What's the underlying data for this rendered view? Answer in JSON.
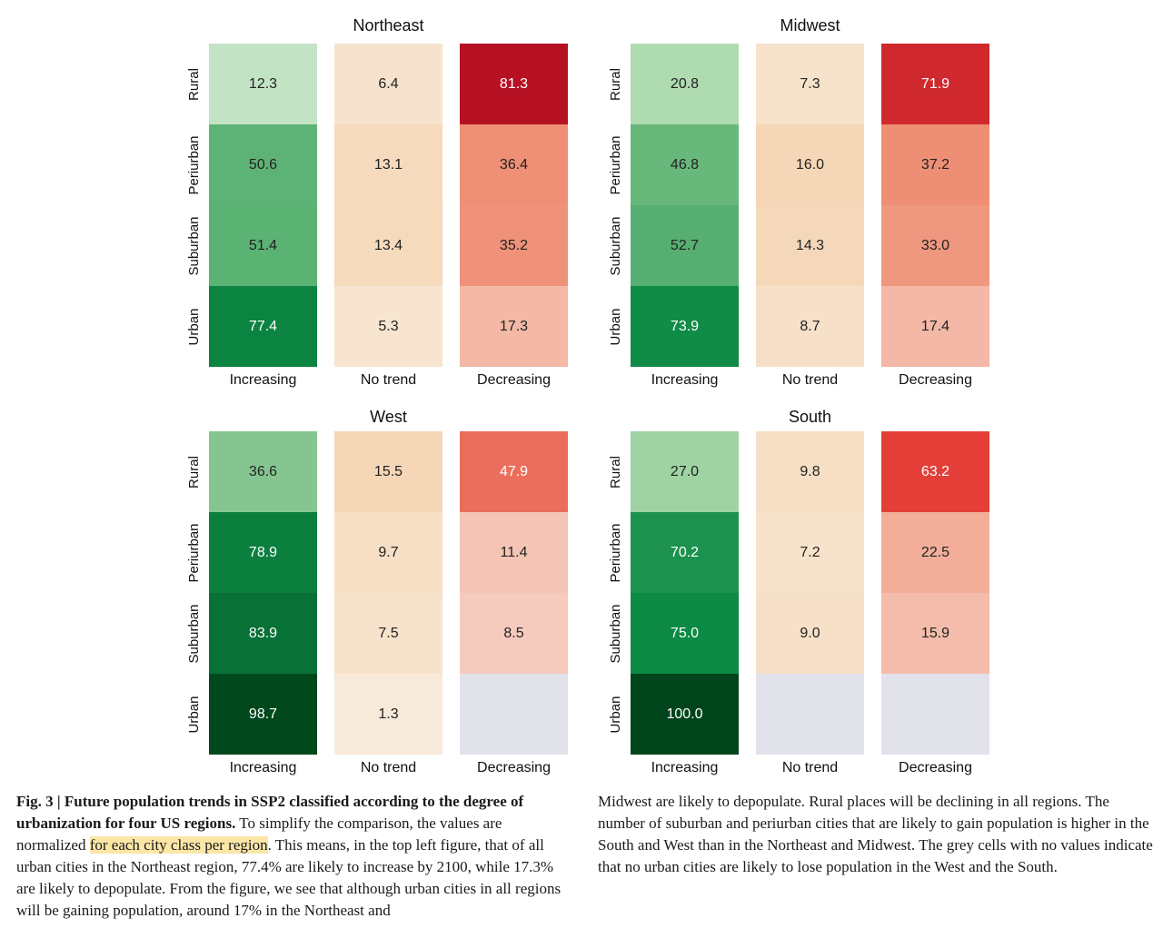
{
  "chart_data": [
    {
      "type": "heatmap",
      "title": "Northeast",
      "rows": [
        "Rural",
        "Periurban",
        "Suburban",
        "Urban"
      ],
      "columns": [
        "Increasing",
        "No trend",
        "Decreasing"
      ],
      "values": [
        [
          12.3,
          6.4,
          81.3
        ],
        [
          50.6,
          13.1,
          36.4
        ],
        [
          51.4,
          13.4,
          35.2
        ],
        [
          77.4,
          5.3,
          17.3
        ]
      ]
    },
    {
      "type": "heatmap",
      "title": "Midwest",
      "rows": [
        "Rural",
        "Periurban",
        "Suburban",
        "Urban"
      ],
      "columns": [
        "Increasing",
        "No trend",
        "Decreasing"
      ],
      "values": [
        [
          20.8,
          7.3,
          71.9
        ],
        [
          46.8,
          16.0,
          37.2
        ],
        [
          52.7,
          14.3,
          33.0
        ],
        [
          73.9,
          8.7,
          17.4
        ]
      ]
    },
    {
      "type": "heatmap",
      "title": "West",
      "rows": [
        "Rural",
        "Periurban",
        "Suburban",
        "Urban"
      ],
      "columns": [
        "Increasing",
        "No trend",
        "Decreasing"
      ],
      "values": [
        [
          36.6,
          15.5,
          47.9
        ],
        [
          78.9,
          9.7,
          11.4
        ],
        [
          83.9,
          7.5,
          8.5
        ],
        [
          98.7,
          1.3,
          null
        ]
      ]
    },
    {
      "type": "heatmap",
      "title": "South",
      "rows": [
        "Rural",
        "Periurban",
        "Suburban",
        "Urban"
      ],
      "columns": [
        "Increasing",
        "No trend",
        "Decreasing"
      ],
      "values": [
        [
          27.0,
          9.8,
          63.2
        ],
        [
          70.2,
          7.2,
          22.5
        ],
        [
          75.0,
          9.0,
          15.9
        ],
        [
          100.0,
          null,
          null
        ]
      ]
    }
  ],
  "colors": {
    "increasing": "#00441b",
    "no_trend": "#f6d2ae",
    "decreasing": "#b30f22",
    "empty_cell": "#e2e2ea",
    "highlight": "#fbe6a6"
  },
  "caption": {
    "fig_label": "Fig. 3 |",
    "bold_title": "Future population trends in SSP2 classified according to the degree of urbanization for four US regions.",
    "text_before_highlight": " To simplify the comparison, the values are normalized ",
    "highlight": "for each city class per region",
    "text_after_highlight": ". This means, in the top left figure, that of all urban cities in the Northeast region, 77.4% are likely to increase by 2100, while 17.3% are likely to depopulate. From the figure, we see that although urban cities in all regions will be gaining population, around 17% in the Northeast and",
    "right_column": "Midwest are likely to depopulate. Rural places will be declining in all regions. The number of suburban and periurban cities that are likely to gain population is higher in the South and West than in the Northeast and Midwest. The grey cells with no values indicate that no urban cities are likely to lose population in the West and the South."
  }
}
